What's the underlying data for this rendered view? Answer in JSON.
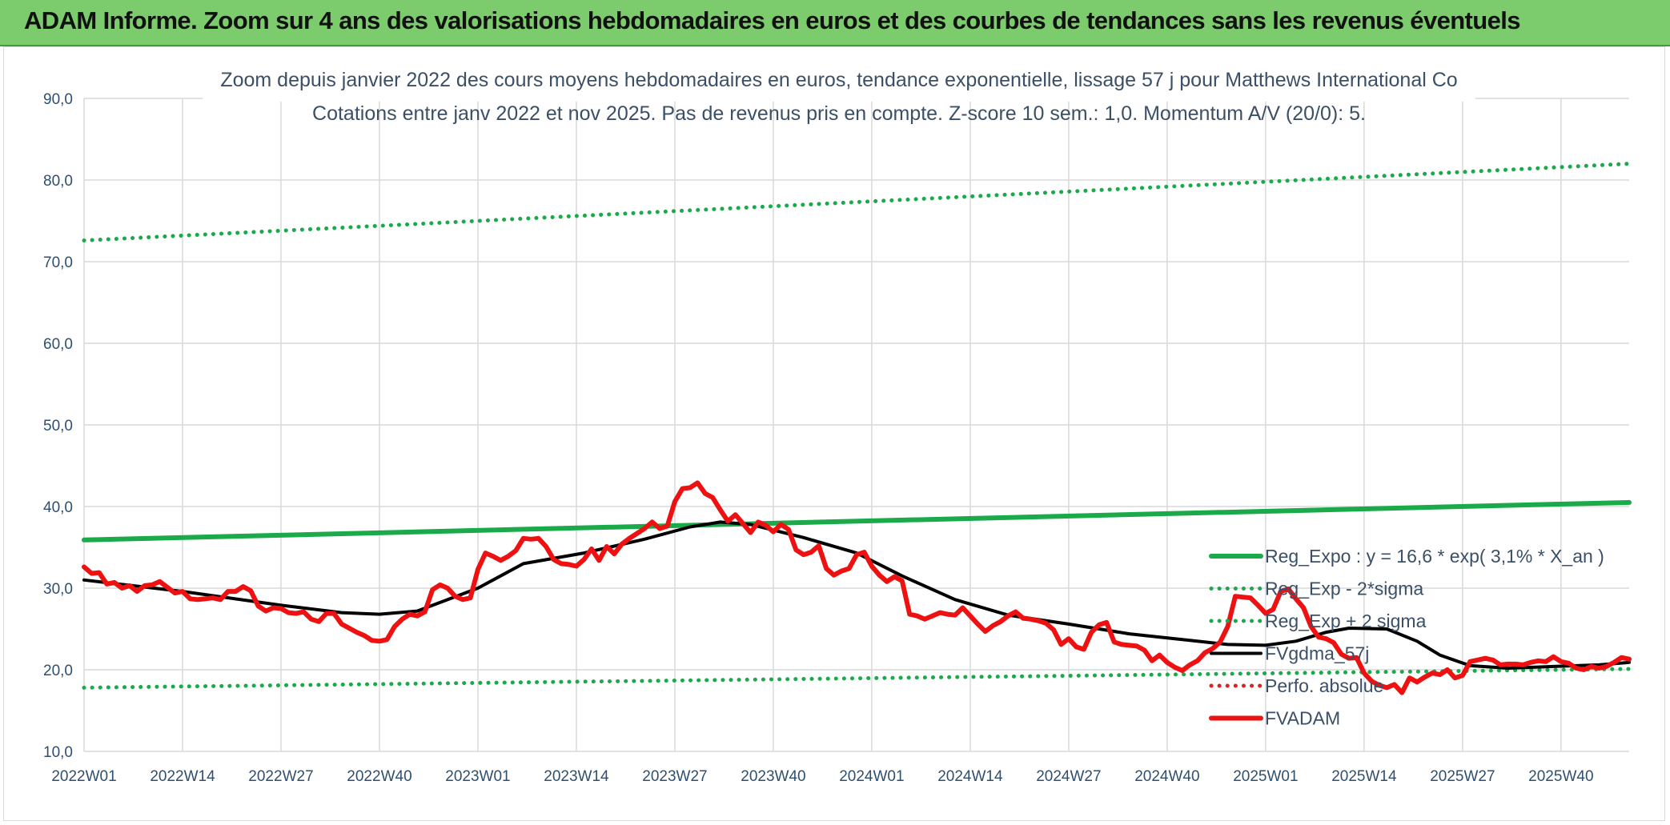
{
  "banner": {
    "title": "ADAM Informe. Zoom sur 4 ans des valorisations hebdomadaires en euros et des courbes de tendances sans les revenus éventuels"
  },
  "chart_data": {
    "type": "line",
    "title": "Zoom depuis janvier 2022 des cours moyens hebdomadaires en euros, tendance exponentielle, lissage 57 j pour Matthews International Co",
    "subtitle": "Cotations entre janv 2022 et nov 2025. Pas de revenus pris en compte. Z-score 10 sem.: 1,0. Momentum A/V (20/0): 5.",
    "xlabel": "",
    "ylabel": "",
    "ylim": [
      10,
      90
    ],
    "yticks": [
      "10,0",
      "20,0",
      "30,0",
      "40,0",
      "50,0",
      "60,0",
      "70,0",
      "80,0",
      "90,0"
    ],
    "x_tick_labels": [
      "2022W01",
      "2022W14",
      "2022W27",
      "2022W40",
      "2023W01",
      "2023W14",
      "2023W27",
      "2023W40",
      "2024W01",
      "2024W14",
      "2024W27",
      "2024W40",
      "2025W01",
      "2025W14",
      "2025W27",
      "2025W40"
    ],
    "grid": true,
    "legend_position": "right",
    "series": [
      {
        "name": "Reg_Expo : y = 16,6 * exp( 3,1% *  X_an )",
        "color": "#1aaa4a",
        "style": "solid-thick",
        "points": [
          [
            0,
            35.9
          ],
          [
            204,
            40.5
          ]
        ]
      },
      {
        "name": "Reg_Exp - 2*sigma",
        "color": "#1aaa4a",
        "style": "dotted",
        "points": [
          [
            0,
            17.8
          ],
          [
            204,
            20.1
          ]
        ]
      },
      {
        "name": "Reg_Exp + 2 sigma",
        "color": "#1aaa4a",
        "style": "dotted",
        "points": [
          [
            0,
            72.6
          ],
          [
            204,
            82.0
          ]
        ]
      },
      {
        "name": "FVgdma_57j",
        "color": "#000000",
        "style": "solid",
        "points": [
          [
            0,
            31.0
          ],
          [
            13,
            29.6
          ],
          [
            26,
            27.9
          ],
          [
            34,
            27.0
          ],
          [
            39,
            26.8
          ],
          [
            44,
            27.2
          ],
          [
            52,
            30.0
          ],
          [
            58,
            33.0
          ],
          [
            66,
            34.3
          ],
          [
            74,
            36.0
          ],
          [
            80,
            37.5
          ],
          [
            84,
            38.1
          ],
          [
            88,
            37.8
          ],
          [
            95,
            36.2
          ],
          [
            102,
            34.3
          ],
          [
            108,
            31.5
          ],
          [
            115,
            28.6
          ],
          [
            122,
            26.7
          ],
          [
            130,
            25.6
          ],
          [
            138,
            24.4
          ],
          [
            146,
            23.6
          ],
          [
            151,
            23.1
          ],
          [
            156,
            23.0
          ],
          [
            160,
            23.5
          ],
          [
            164,
            24.6
          ],
          [
            167,
            25.1
          ],
          [
            172,
            25.0
          ],
          [
            176,
            23.5
          ],
          [
            179,
            21.8
          ],
          [
            183,
            20.5
          ],
          [
            188,
            20.2
          ],
          [
            194,
            20.4
          ],
          [
            200,
            20.6
          ],
          [
            204,
            20.9
          ]
        ]
      },
      {
        "name": "Perfo. absolue",
        "color": "#e02020",
        "style": "dotted",
        "points": []
      },
      {
        "name": "FVADAM",
        "color": "#ee1111",
        "style": "solid-thick",
        "points": [
          [
            0,
            32.6
          ],
          [
            1,
            31.8
          ],
          [
            2,
            31.9
          ],
          [
            3,
            30.5
          ],
          [
            4,
            30.7
          ],
          [
            5,
            30.0
          ],
          [
            6,
            30.3
          ],
          [
            7,
            29.6
          ],
          [
            8,
            30.3
          ],
          [
            9,
            30.4
          ],
          [
            10,
            30.8
          ],
          [
            11,
            30.1
          ],
          [
            12,
            29.4
          ],
          [
            13,
            29.6
          ],
          [
            14,
            28.7
          ],
          [
            15,
            28.6
          ],
          [
            16,
            28.7
          ],
          [
            17,
            28.8
          ],
          [
            18,
            28.6
          ],
          [
            19,
            29.6
          ],
          [
            20,
            29.6
          ],
          [
            21,
            30.2
          ],
          [
            22,
            29.7
          ],
          [
            23,
            27.8
          ],
          [
            24,
            27.2
          ],
          [
            25,
            27.6
          ],
          [
            26,
            27.5
          ],
          [
            27,
            27.0
          ],
          [
            28,
            26.9
          ],
          [
            29,
            27.1
          ],
          [
            30,
            26.2
          ],
          [
            31,
            25.9
          ],
          [
            32,
            26.9
          ],
          [
            33,
            26.9
          ],
          [
            34,
            25.6
          ],
          [
            35,
            25.1
          ],
          [
            36,
            24.6
          ],
          [
            37,
            24.2
          ],
          [
            38,
            23.6
          ],
          [
            39,
            23.5
          ],
          [
            40,
            23.7
          ],
          [
            41,
            25.3
          ],
          [
            42,
            26.2
          ],
          [
            43,
            26.8
          ],
          [
            44,
            26.6
          ],
          [
            45,
            27.1
          ],
          [
            46,
            29.8
          ],
          [
            47,
            30.4
          ],
          [
            48,
            30.0
          ],
          [
            49,
            29.0
          ],
          [
            50,
            28.6
          ],
          [
            51,
            28.8
          ],
          [
            52,
            32.3
          ],
          [
            53,
            34.3
          ],
          [
            54,
            33.9
          ],
          [
            55,
            33.4
          ],
          [
            56,
            33.9
          ],
          [
            57,
            34.6
          ],
          [
            58,
            36.1
          ],
          [
            59,
            36.0
          ],
          [
            60,
            36.1
          ],
          [
            61,
            35.1
          ],
          [
            62,
            33.5
          ],
          [
            63,
            33.0
          ],
          [
            64,
            32.9
          ],
          [
            65,
            32.7
          ],
          [
            66,
            33.5
          ],
          [
            67,
            34.8
          ],
          [
            68,
            33.4
          ],
          [
            69,
            35.1
          ],
          [
            70,
            34.2
          ],
          [
            71,
            35.4
          ],
          [
            72,
            36.1
          ],
          [
            73,
            36.7
          ],
          [
            74,
            37.3
          ],
          [
            75,
            38.1
          ],
          [
            76,
            37.3
          ],
          [
            77,
            37.6
          ],
          [
            78,
            40.6
          ],
          [
            79,
            42.2
          ],
          [
            80,
            42.3
          ],
          [
            81,
            42.9
          ],
          [
            82,
            41.6
          ],
          [
            83,
            41.1
          ],
          [
            84,
            39.6
          ],
          [
            85,
            38.2
          ],
          [
            86,
            39.0
          ],
          [
            87,
            37.9
          ],
          [
            88,
            36.8
          ],
          [
            89,
            38.1
          ],
          [
            90,
            37.7
          ],
          [
            91,
            36.9
          ],
          [
            92,
            37.8
          ],
          [
            93,
            37.2
          ],
          [
            94,
            34.7
          ],
          [
            95,
            34.1
          ],
          [
            96,
            34.4
          ],
          [
            97,
            35.2
          ],
          [
            98,
            32.4
          ],
          [
            99,
            31.6
          ],
          [
            100,
            32.1
          ],
          [
            101,
            32.4
          ],
          [
            102,
            34.1
          ],
          [
            103,
            34.4
          ],
          [
            104,
            32.7
          ],
          [
            105,
            31.6
          ],
          [
            106,
            30.8
          ],
          [
            107,
            31.4
          ],
          [
            108,
            30.9
          ],
          [
            109,
            26.8
          ],
          [
            110,
            26.6
          ],
          [
            111,
            26.2
          ],
          [
            112,
            26.6
          ],
          [
            113,
            27.0
          ],
          [
            114,
            26.8
          ],
          [
            115,
            26.7
          ],
          [
            116,
            27.6
          ],
          [
            117,
            26.6
          ],
          [
            118,
            25.6
          ],
          [
            119,
            24.7
          ],
          [
            120,
            25.4
          ],
          [
            121,
            25.9
          ],
          [
            122,
            26.6
          ],
          [
            123,
            27.1
          ],
          [
            124,
            26.3
          ],
          [
            125,
            26.2
          ],
          [
            126,
            26.0
          ],
          [
            127,
            25.7
          ],
          [
            128,
            24.9
          ],
          [
            129,
            23.1
          ],
          [
            130,
            23.8
          ],
          [
            131,
            22.8
          ],
          [
            132,
            22.5
          ],
          [
            133,
            24.6
          ],
          [
            134,
            25.5
          ],
          [
            135,
            25.8
          ],
          [
            136,
            23.4
          ],
          [
            137,
            23.1
          ],
          [
            138,
            23.0
          ],
          [
            139,
            22.9
          ],
          [
            140,
            22.4
          ],
          [
            141,
            21.1
          ],
          [
            142,
            21.8
          ],
          [
            143,
            20.9
          ],
          [
            144,
            20.3
          ],
          [
            145,
            19.9
          ],
          [
            146,
            20.6
          ],
          [
            147,
            21.1
          ],
          [
            148,
            22.1
          ],
          [
            149,
            22.6
          ],
          [
            150,
            23.4
          ],
          [
            151,
            25.3
          ],
          [
            152,
            29.0
          ],
          [
            153,
            28.9
          ],
          [
            154,
            28.8
          ],
          [
            155,
            27.9
          ],
          [
            156,
            26.9
          ],
          [
            157,
            27.4
          ],
          [
            158,
            29.6
          ],
          [
            159,
            29.9
          ],
          [
            160,
            28.7
          ],
          [
            161,
            27.6
          ],
          [
            162,
            25.3
          ],
          [
            163,
            24.0
          ],
          [
            164,
            23.8
          ],
          [
            165,
            23.3
          ],
          [
            166,
            21.9
          ],
          [
            167,
            21.4
          ],
          [
            168,
            21.5
          ],
          [
            169,
            19.6
          ],
          [
            170,
            18.6
          ],
          [
            171,
            18.1
          ],
          [
            172,
            17.8
          ],
          [
            173,
            18.2
          ],
          [
            174,
            17.2
          ],
          [
            175,
            19.0
          ],
          [
            176,
            18.5
          ],
          [
            177,
            19.1
          ],
          [
            178,
            19.6
          ],
          [
            179,
            19.4
          ],
          [
            180,
            20.0
          ],
          [
            181,
            19.0
          ],
          [
            182,
            19.3
          ],
          [
            183,
            21.0
          ],
          [
            184,
            21.2
          ],
          [
            185,
            21.4
          ],
          [
            186,
            21.2
          ],
          [
            187,
            20.6
          ],
          [
            188,
            20.7
          ],
          [
            189,
            20.7
          ],
          [
            190,
            20.6
          ],
          [
            191,
            20.9
          ],
          [
            192,
            21.1
          ],
          [
            193,
            21.0
          ],
          [
            194,
            21.6
          ],
          [
            195,
            21.0
          ],
          [
            196,
            20.8
          ],
          [
            197,
            20.2
          ],
          [
            198,
            20.0
          ],
          [
            199,
            20.4
          ],
          [
            200,
            20.2
          ],
          [
            201,
            20.4
          ],
          [
            202,
            20.9
          ],
          [
            203,
            21.5
          ],
          [
            204,
            21.3
          ]
        ]
      }
    ]
  }
}
